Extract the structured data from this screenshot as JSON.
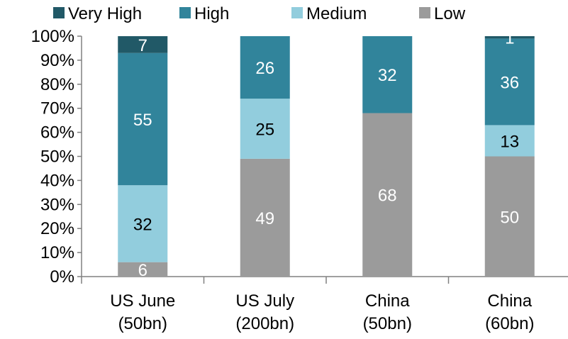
{
  "chart_data": {
    "type": "bar",
    "stacked": true,
    "percent_stacked": true,
    "categories": [
      [
        "US June",
        "(50bn)"
      ],
      [
        "US July",
        "(200bn)"
      ],
      [
        "China",
        "(50bn)"
      ],
      [
        "China",
        "(60bn)"
      ]
    ],
    "series": [
      {
        "name": "Low",
        "color": "#9b9b9b",
        "values": [
          6,
          49,
          68,
          50
        ],
        "label_color": "#ffffff"
      },
      {
        "name": "Medium",
        "color": "#92cddd",
        "values": [
          32,
          25,
          0,
          13
        ],
        "label_color": "#000000"
      },
      {
        "name": "High",
        "color": "#31849b",
        "values": [
          55,
          26,
          32,
          36
        ],
        "label_color": "#ffffff"
      },
      {
        "name": "Very High",
        "color": "#215967",
        "values": [
          7,
          0,
          0,
          1
        ],
        "label_color": "#ffffff"
      }
    ],
    "legend_order": [
      "Very High",
      "High",
      "Medium",
      "Low"
    ],
    "legend_position": "top",
    "ylim": [
      0,
      100
    ],
    "yticks": [
      "0%",
      "10%",
      "20%",
      "30%",
      "40%",
      "50%",
      "60%",
      "70%",
      "80%",
      "90%",
      "100%"
    ],
    "grid": false,
    "title": "",
    "xlabel": "",
    "ylabel": ""
  }
}
